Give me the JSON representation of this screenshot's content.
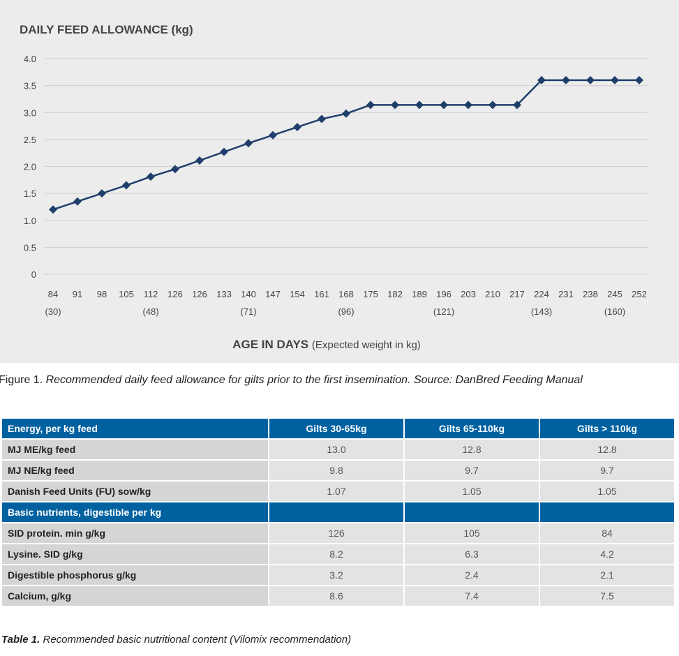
{
  "chart_data": {
    "type": "line",
    "title": "DAILY FEED ALLOWANCE (kg)",
    "xlabel_bold": "AGE IN DAYS",
    "xlabel_rest": "(Expected weight in kg)",
    "categories": [
      "84",
      "91",
      "98",
      "105",
      "112",
      "126",
      "126",
      "133",
      "140",
      "147",
      "154",
      "161",
      "168",
      "175",
      "182",
      "189",
      "196",
      "203",
      "210",
      "217",
      "224",
      "231",
      "238",
      "245",
      "252"
    ],
    "weight_labels": [
      "(30)",
      "",
      "",
      "",
      "(48)",
      "",
      "",
      "",
      "(71)",
      "",
      "",
      "",
      "(96)",
      "",
      "",
      "",
      "(121)",
      "",
      "",
      "",
      "(143)",
      "",
      "",
      "(160)",
      ""
    ],
    "weight_label_positions_note": "",
    "values": [
      1.2,
      1.35,
      1.5,
      1.65,
      1.81,
      1.95,
      2.11,
      2.27,
      2.43,
      2.58,
      2.73,
      2.88,
      2.98,
      3.14,
      3.14,
      3.14,
      3.14,
      3.14,
      3.14,
      3.14,
      3.6,
      3.6,
      3.6,
      3.6,
      3.6
    ],
    "ylim": [
      0,
      4.0
    ],
    "yticks": [
      "0",
      "0.5",
      "1.0",
      "1.5",
      "2.0",
      "2.5",
      "3.0",
      "3.5",
      "4.0"
    ],
    "grid": true,
    "marker": "diamond",
    "color": "#1f3f6b"
  },
  "figure_caption": {
    "label": "Figure 1.",
    "text": "Recommended daily feed allowance for gilts prior to the first insemination. Source: DanBred Feeding Manual"
  },
  "table": {
    "header": [
      "Energy, per kg feed",
      "Gilts 30-65kg",
      "Gilts 65-110kg",
      "Gilts > 110kg"
    ],
    "energy_rows": [
      [
        "MJ ME/kg feed",
        "13.0",
        "12.8",
        "12.8"
      ],
      [
        "MJ NE/kg feed",
        "9.8",
        "9.7",
        "9.7"
      ],
      [
        "Danish Feed Units (FU) sow/kg",
        "1.07",
        "1.05",
        "1.05"
      ]
    ],
    "section2": "Basic nutrients, digestible per kg",
    "nutrient_rows": [
      [
        "SID protein. min g/kg",
        "126",
        "105",
        "84"
      ],
      [
        "Lysine. SID g/kg",
        "8.2",
        "6.3",
        "4.2"
      ],
      [
        "Digestible phosphorus g/kg",
        "3.2",
        "2.4",
        "2.1"
      ],
      [
        "Calcium, g/kg",
        "8.6",
        "7.4",
        "7.5"
      ]
    ]
  },
  "table_caption": {
    "label": "Table 1.",
    "text": "Recommended basic nutritional content (Vilomix recommendation)"
  }
}
